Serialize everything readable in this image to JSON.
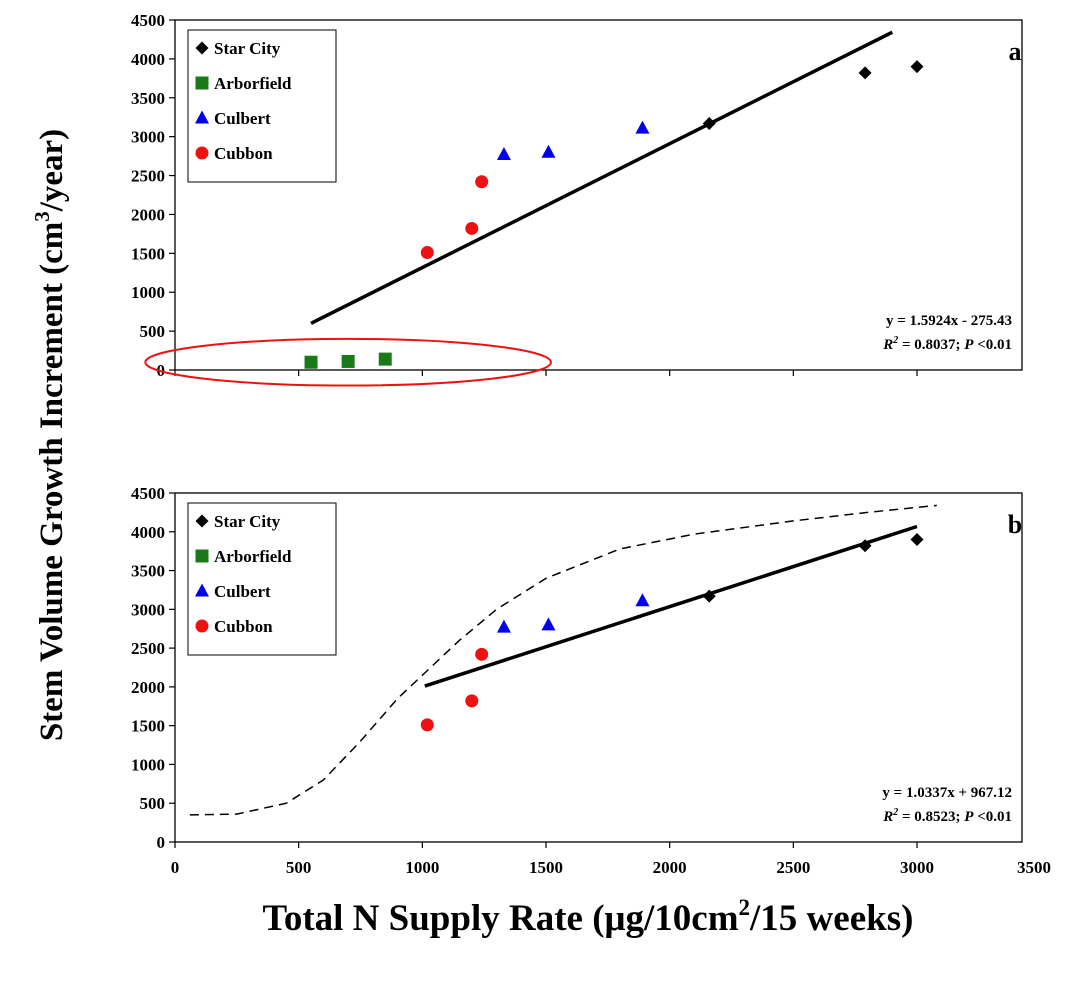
{
  "chart_data": {
    "type": "scatter",
    "ylabel": "Stem Volume Growth Increment (cm",
    "ylabel_sup": "3",
    "ylabel_end": "/year)",
    "xlabel": "Total N Supply Rate (μg/10cm",
    "xlabel_sup": "2",
    "xlabel_end": "/15 weeks)",
    "xlim": [
      0,
      3500
    ],
    "ylim": [
      0,
      4500
    ],
    "xticks": [
      0,
      500,
      1000,
      1500,
      2000,
      2500,
      3000,
      3500
    ],
    "yticks": [
      0,
      500,
      1000,
      1500,
      2000,
      2500,
      3000,
      3500,
      4000,
      4500
    ],
    "legend_position": "top-left",
    "series": [
      {
        "name": "Star City",
        "marker": "diamond",
        "color": "#000000"
      },
      {
        "name": "Arborfield",
        "marker": "square",
        "color": "#1a7a1a"
      },
      {
        "name": "Culbert",
        "marker": "triangle",
        "color": "#0000ee"
      },
      {
        "name": "Cubbon",
        "marker": "circle",
        "color": "#ee1111"
      }
    ],
    "panels": [
      {
        "label": "a",
        "points": {
          "Star City": [
            [
              2160,
              3170
            ],
            [
              2790,
              3820
            ],
            [
              3000,
              3900
            ]
          ],
          "Arborfield": [
            [
              550,
              100
            ],
            [
              700,
              110
            ],
            [
              850,
              140
            ]
          ],
          "Culbert": [
            [
              1330,
              2770
            ],
            [
              1510,
              2800
            ],
            [
              1890,
              3110
            ]
          ],
          "Cubbon": [
            [
              1020,
              1510
            ],
            [
              1200,
              1820
            ],
            [
              1240,
              2420
            ]
          ]
        },
        "trendline": {
          "x_start": 550,
          "x_end": 2900,
          "slope": 1.5924,
          "intercept": -275.43
        },
        "equation_line1": "y = 1.5924x - 275.43",
        "r2_label": "R",
        "r2_sup": "2",
        "r2_value": " = 0.8037; ",
        "p_label": "P",
        "p_value": " <0.01",
        "highlight_ellipse": {
          "cx": 700,
          "cy": 100,
          "rx_data": 820,
          "ry_data": 300,
          "color": "#ee1111"
        }
      },
      {
        "label": "b",
        "points": {
          "Star City": [
            [
              2160,
              3170
            ],
            [
              2790,
              3820
            ],
            [
              3000,
              3900
            ]
          ],
          "Culbert": [
            [
              1330,
              2770
            ],
            [
              1510,
              2800
            ],
            [
              1890,
              3110
            ]
          ],
          "Cubbon": [
            [
              1020,
              1510
            ],
            [
              1200,
              1820
            ],
            [
              1240,
              2420
            ]
          ]
        },
        "trendline": {
          "x_start": 1010,
          "x_end": 3000,
          "slope": 1.0337,
          "intercept": 967.12
        },
        "equation_line1": "y = 1.0337x + 967.12",
        "r2_label": "R",
        "r2_sup": "2",
        "r2_value": " = 0.8523; ",
        "p_label": "P",
        "p_value": " <0.01",
        "dashed_curve": [
          [
            60,
            350
          ],
          [
            250,
            360
          ],
          [
            450,
            500
          ],
          [
            600,
            800
          ],
          [
            750,
            1300
          ],
          [
            900,
            1850
          ],
          [
            1000,
            2150
          ],
          [
            1150,
            2600
          ],
          [
            1300,
            3000
          ],
          [
            1500,
            3400
          ],
          [
            1800,
            3780
          ],
          [
            2100,
            3970
          ],
          [
            2500,
            4140
          ],
          [
            2800,
            4250
          ],
          [
            3080,
            4340
          ]
        ]
      }
    ]
  }
}
